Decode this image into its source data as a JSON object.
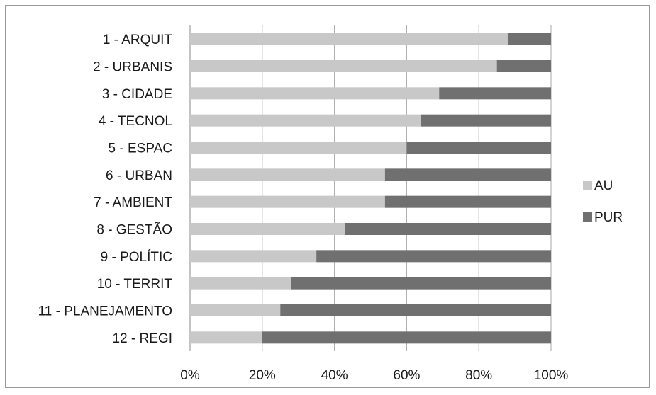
{
  "chart_data": {
    "type": "bar",
    "orientation": "horizontal",
    "stacked": "percent",
    "title": "",
    "xlabel": "",
    "ylabel": "",
    "xlim": [
      0,
      100
    ],
    "x_ticks": [
      "0%",
      "20%",
      "40%",
      "60%",
      "80%",
      "100%"
    ],
    "grid": "vertical",
    "legend_position": "right",
    "categories": [
      "1 - ARQUIT",
      "2 - URBANIS",
      "3 - CIDADE",
      "4 - TECNOL",
      "5 - ESPAC",
      "6 - URBAN",
      "7 - AMBIENT",
      "8 - GESTÃO",
      "9 - POLÍTIC",
      "10 - TERRIT",
      "11 - PLANEJAMENTO",
      "12 - REGI"
    ],
    "series": [
      {
        "name": "AU",
        "color": "#c8c8c8",
        "values": [
          88,
          85,
          69,
          64,
          60,
          54,
          54,
          43,
          35,
          28,
          25,
          20
        ]
      },
      {
        "name": "PUR",
        "color": "#707070",
        "values": [
          12,
          15,
          31,
          36,
          40,
          46,
          46,
          57,
          65,
          72,
          75,
          80
        ]
      }
    ]
  }
}
